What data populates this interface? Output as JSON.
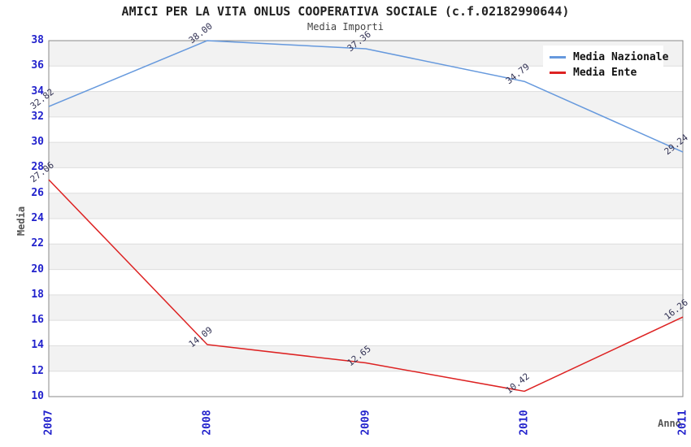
{
  "chart_data": {
    "type": "line",
    "title": "AMICI PER LA VITA ONLUS COOPERATIVA SOCIALE (c.f.02182990644)",
    "subtitle": "Media Importi",
    "xlabel": "Anno",
    "ylabel": "Media",
    "x": [
      "2007",
      "2008",
      "2009",
      "2010",
      "2011"
    ],
    "series": [
      {
        "name": "Media Nazionale",
        "color": "#6699dd",
        "values": [
          32.82,
          38.0,
          37.36,
          34.79,
          29.24
        ]
      },
      {
        "name": "Media Ente",
        "color": "#dd2222",
        "values": [
          27.06,
          14.09,
          12.65,
          10.42,
          16.26
        ]
      }
    ],
    "ylim": [
      10,
      38
    ],
    "ytick_step": 2,
    "value_label_decimals": 2,
    "grid": "horizontal-bands-alternating",
    "legend_position": "top-right",
    "style": {
      "band_gray": "#f2f2f2",
      "band_white": "#ffffff",
      "grid_line": "#dddddd",
      "plot_border": "#888888",
      "tick_label_color": "#2222cc",
      "value_label_color": "#333355",
      "axis_title_color": "#555555",
      "title_color": "#222222",
      "subtitle_color": "#444444"
    }
  }
}
